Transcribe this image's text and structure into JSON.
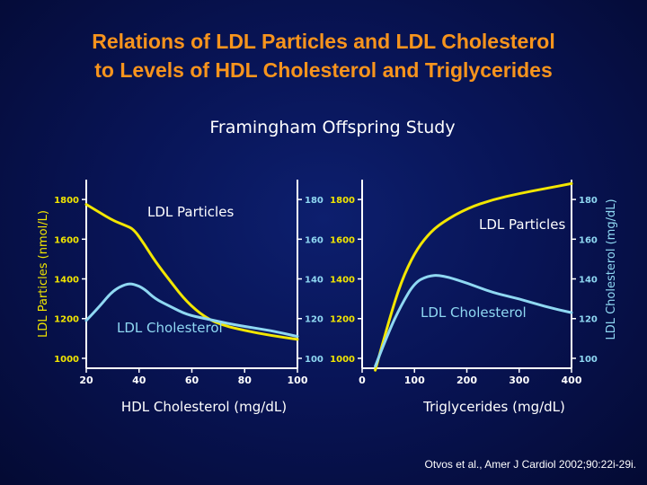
{
  "title_line1": "Relations of LDL Particles and LDL Cholesterol",
  "title_line2": "to Levels of HDL Cholesterol and Triglycerides",
  "subtitle": "Framingham Offspring Study",
  "citation": "Otvos et al., Amer J Cardiol 2002;90:22i-29i.",
  "colors": {
    "title": "#f7941d",
    "particles": "#f2e600",
    "cholesterol": "#8fd8f2",
    "axis_labels": "#8fd8f2",
    "tick_labels": "#f2e600"
  },
  "chart_data": [
    {
      "type": "line",
      "title": "Framingham Offspring Study",
      "xlabel": "HDL Cholesterol (mg/dL)",
      "ylabel_left": "LDL Particles (nmol/L)",
      "ylabel_right": "LDL Cholesterol (mg/dL)",
      "xlim": [
        20,
        100
      ],
      "x_ticks": [
        "20",
        "40",
        "60",
        "80",
        "100"
      ],
      "ylim_left": [
        950,
        1900
      ],
      "y_ticks_left": [
        "1000",
        "1200",
        "1400",
        "1600",
        "1800"
      ],
      "ylim_right": [
        95,
        190
      ],
      "y_ticks_right": [
        "100",
        "120",
        "140",
        "160",
        "180"
      ],
      "grid": false,
      "series": [
        {
          "name": "LDL Particles",
          "axis": "left",
          "x": [
            20,
            25,
            30,
            35,
            38,
            42,
            46,
            52,
            58,
            65,
            72,
            80,
            90,
            100
          ],
          "y": [
            1775,
            1735,
            1695,
            1668,
            1650,
            1575,
            1490,
            1385,
            1285,
            1205,
            1165,
            1140,
            1115,
            1095
          ]
        },
        {
          "name": "LDL Cholesterol",
          "axis": "right",
          "x": [
            20,
            25,
            30,
            35,
            38,
            42,
            46,
            52,
            58,
            65,
            72,
            80,
            90,
            100
          ],
          "y": [
            119,
            126,
            134,
            137.5,
            137.5,
            135,
            130,
            126,
            122,
            120,
            118,
            116,
            114,
            111
          ]
        }
      ]
    },
    {
      "type": "line",
      "xlabel": "Triglycerides (mg/dL)",
      "ylabel_left": "LDL Particles (nmol/L)",
      "ylabel_right": "LDL Cholesterol (mg/dL)",
      "xlim": [
        0,
        400
      ],
      "x_ticks": [
        "0",
        "100",
        "200",
        "300",
        "400"
      ],
      "ylim_left": [
        950,
        1900
      ],
      "y_ticks_left": [
        "1000",
        "1200",
        "1400",
        "1600",
        "1800"
      ],
      "ylim_right": [
        95,
        190
      ],
      "y_ticks_right": [
        "100",
        "120",
        "140",
        "160",
        "180"
      ],
      "grid": false,
      "series": [
        {
          "name": "LDL Particles",
          "axis": "left",
          "x": [
            25,
            50,
            75,
            100,
            125,
            150,
            200,
            250,
            300,
            350,
            400
          ],
          "y": [
            940,
            1180,
            1390,
            1530,
            1620,
            1680,
            1755,
            1800,
            1830,
            1855,
            1880
          ]
        },
        {
          "name": "LDL Cholesterol",
          "axis": "right",
          "x": [
            25,
            50,
            75,
            100,
            125,
            150,
            200,
            250,
            300,
            350,
            400
          ],
          "y": [
            96,
            113,
            127,
            138,
            141.5,
            142,
            138,
            133,
            130,
            126,
            123
          ]
        }
      ]
    }
  ]
}
